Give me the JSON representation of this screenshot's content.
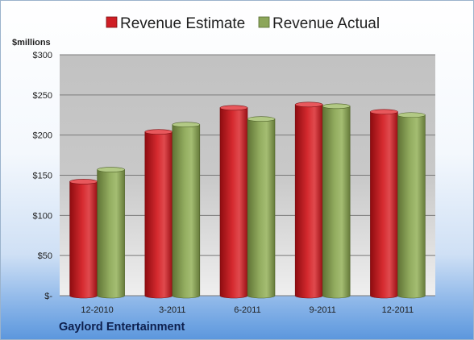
{
  "chart_data": {
    "type": "bar",
    "title": "",
    "ylabel": "$millions",
    "categories": [
      "12-2010",
      "3-2011",
      "6-2011",
      "9-2011",
      "12-2011"
    ],
    "series": [
      {
        "name": "Revenue Estimate",
        "color": "#cf1e25",
        "values": [
          142,
          204,
          234,
          238,
          229
        ]
      },
      {
        "name": "Revenue Actual",
        "color": "#8ca65a",
        "values": [
          157,
          213,
          220,
          236,
          225
        ]
      }
    ],
    "ylim": [
      0,
      300
    ],
    "yticks": [
      0,
      50,
      100,
      150,
      200,
      250,
      300
    ],
    "ytick_labels": [
      "$-",
      "$50",
      "$100",
      "$150",
      "$200",
      "$250",
      "$300"
    ],
    "grid": true,
    "legend": "top-center"
  },
  "footer": {
    "company": "Gaylord Entertainment"
  }
}
